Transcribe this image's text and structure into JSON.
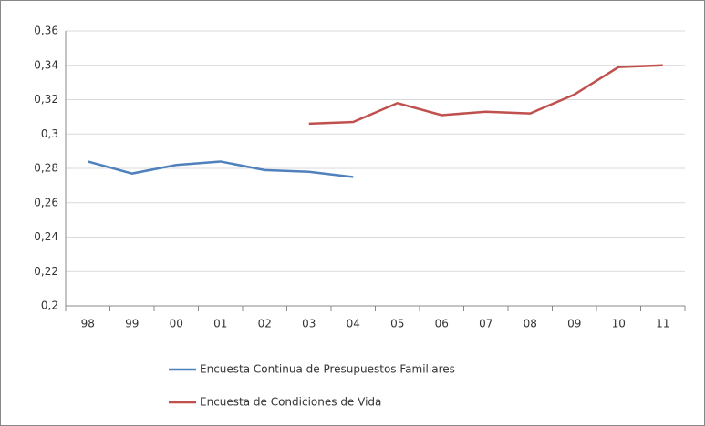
{
  "chart_data": {
    "type": "line",
    "categories": [
      "98",
      "99",
      "00",
      "01",
      "02",
      "03",
      "04",
      "05",
      "06",
      "07",
      "08",
      "09",
      "10",
      "11"
    ],
    "series": [
      {
        "name": "Encuesta Continua de Presupuestos Familiares",
        "color": "#4f81bd",
        "values": [
          0.284,
          0.277,
          0.282,
          0.284,
          0.279,
          0.278,
          0.275,
          null,
          null,
          null,
          null,
          null,
          null,
          null
        ]
      },
      {
        "name": "Encuesta de Condiciones de Vida",
        "color": "#c0504d",
        "values": [
          null,
          null,
          null,
          null,
          null,
          0.306,
          0.307,
          0.318,
          0.311,
          0.313,
          0.312,
          0.323,
          0.339,
          0.34
        ]
      }
    ],
    "ylim": [
      0.2,
      0.36
    ],
    "yticks": [
      {
        "value": 0.2,
        "label": "0,2"
      },
      {
        "value": 0.22,
        "label": "0,22"
      },
      {
        "value": 0.24,
        "label": "0,24"
      },
      {
        "value": 0.26,
        "label": "0,26"
      },
      {
        "value": 0.28,
        "label": "0,28"
      },
      {
        "value": 0.3,
        "label": "0,3"
      },
      {
        "value": 0.32,
        "label": "0,32"
      },
      {
        "value": 0.34,
        "label": "0,34"
      },
      {
        "value": 0.36,
        "label": "0,36"
      }
    ],
    "grid": true,
    "legend": "bottom"
  }
}
